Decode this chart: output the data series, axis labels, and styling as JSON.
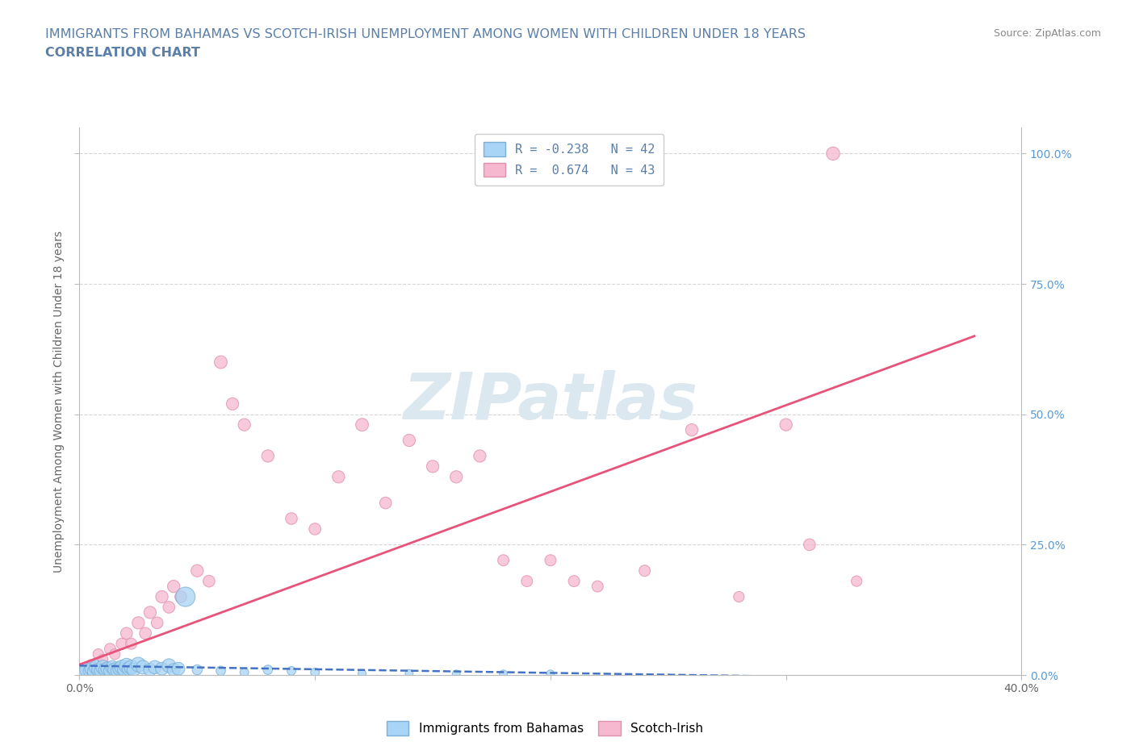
{
  "title_line1": "IMMIGRANTS FROM BAHAMAS VS SCOTCH-IRISH UNEMPLOYMENT AMONG WOMEN WITH CHILDREN UNDER 18 YEARS",
  "title_line2": "CORRELATION CHART",
  "source_text": "Source: ZipAtlas.com",
  "ylabel": "Unemployment Among Women with Children Under 18 years",
  "xmin": 0.0,
  "xmax": 0.4,
  "ymin": 0.0,
  "ymax": 1.05,
  "legend_R_blue": "-0.238",
  "legend_N_blue": "42",
  "legend_R_pink": "0.674",
  "legend_N_pink": "43",
  "blue_color": "#a8d4f5",
  "pink_color": "#f5b8ce",
  "blue_edge_color": "#7bafd4",
  "pink_edge_color": "#e090b0",
  "blue_line_color": "#4472c4",
  "pink_line_color": "#e8537a",
  "watermark_text": "ZIPatlas",
  "watermark_color": "#dce8f0",
  "grid_color": "#cccccc",
  "title_color": "#5a7fa8",
  "right_tick_color": "#5a9ad4",
  "source_color": "#888888",
  "bg_color": "#ffffff",
  "blue_scatter_x": [
    0.002,
    0.003,
    0.004,
    0.005,
    0.006,
    0.007,
    0.008,
    0.009,
    0.01,
    0.011,
    0.012,
    0.013,
    0.014,
    0.015,
    0.016,
    0.017,
    0.018,
    0.019,
    0.02,
    0.021,
    0.022,
    0.023,
    0.025,
    0.027,
    0.03,
    0.032,
    0.035,
    0.038,
    0.04,
    0.042,
    0.045,
    0.05,
    0.06,
    0.07,
    0.08,
    0.09,
    0.1,
    0.12,
    0.14,
    0.16,
    0.18,
    0.2
  ],
  "blue_scatter_y": [
    0.005,
    0.01,
    0.008,
    0.012,
    0.006,
    0.015,
    0.01,
    0.008,
    0.015,
    0.01,
    0.012,
    0.008,
    0.015,
    0.01,
    0.008,
    0.012,
    0.015,
    0.01,
    0.018,
    0.012,
    0.015,
    0.01,
    0.02,
    0.015,
    0.01,
    0.015,
    0.012,
    0.018,
    0.01,
    0.012,
    0.15,
    0.01,
    0.008,
    0.005,
    0.01,
    0.008,
    0.005,
    0.003,
    0.003,
    0.002,
    0.002,
    0.002
  ],
  "blue_scatter_sizes": [
    120,
    150,
    100,
    130,
    120,
    150,
    140,
    130,
    160,
    140,
    150,
    130,
    140,
    150,
    130,
    140,
    160,
    140,
    170,
    150,
    160,
    140,
    170,
    150,
    130,
    140,
    130,
    150,
    130,
    130,
    300,
    80,
    70,
    60,
    70,
    60,
    60,
    50,
    50,
    50,
    50,
    50
  ],
  "pink_scatter_x": [
    0.005,
    0.008,
    0.01,
    0.013,
    0.015,
    0.018,
    0.02,
    0.022,
    0.025,
    0.028,
    0.03,
    0.033,
    0.035,
    0.038,
    0.04,
    0.043,
    0.05,
    0.055,
    0.06,
    0.065,
    0.07,
    0.08,
    0.09,
    0.1,
    0.11,
    0.12,
    0.13,
    0.14,
    0.15,
    0.16,
    0.17,
    0.18,
    0.19,
    0.2,
    0.21,
    0.22,
    0.24,
    0.26,
    0.28,
    0.3,
    0.31,
    0.32,
    0.33
  ],
  "pink_scatter_y": [
    0.02,
    0.04,
    0.03,
    0.05,
    0.04,
    0.06,
    0.08,
    0.06,
    0.1,
    0.08,
    0.12,
    0.1,
    0.15,
    0.13,
    0.17,
    0.15,
    0.2,
    0.18,
    0.6,
    0.52,
    0.48,
    0.42,
    0.3,
    0.28,
    0.38,
    0.48,
    0.33,
    0.45,
    0.4,
    0.38,
    0.42,
    0.22,
    0.18,
    0.22,
    0.18,
    0.17,
    0.2,
    0.47,
    0.15,
    0.48,
    0.25,
    1.0,
    0.18
  ],
  "pink_scatter_sizes": [
    80,
    90,
    80,
    100,
    90,
    100,
    110,
    100,
    120,
    110,
    120,
    110,
    120,
    110,
    120,
    110,
    120,
    110,
    130,
    120,
    120,
    120,
    110,
    110,
    120,
    130,
    110,
    120,
    120,
    120,
    120,
    100,
    100,
    100,
    100,
    100,
    100,
    120,
    90,
    120,
    110,
    140,
    90
  ],
  "pink_line_x0": 0.0,
  "pink_line_y0": 0.02,
  "pink_line_x1": 0.38,
  "pink_line_y1": 0.65,
  "blue_line_x0": 0.0,
  "blue_line_y0": 0.018,
  "blue_line_x1": 0.33,
  "blue_line_y1": -0.005
}
